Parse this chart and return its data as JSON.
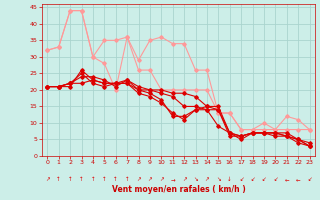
{
  "bg_color": "#cceee8",
  "grid_color": "#aad4ce",
  "xlabel": "Vent moyen/en rafales ( km/h )",
  "xlabel_color": "#cc0000",
  "xlim": [
    -0.5,
    23.5
  ],
  "ylim": [
    0,
    46
  ],
  "xticks": [
    0,
    1,
    2,
    3,
    4,
    5,
    6,
    7,
    8,
    9,
    10,
    11,
    12,
    13,
    14,
    15,
    16,
    17,
    18,
    19,
    20,
    21,
    22,
    23
  ],
  "yticks": [
    0,
    5,
    10,
    15,
    20,
    25,
    30,
    35,
    40,
    45
  ],
  "tick_color": "#cc0000",
  "lines_dark": [
    {
      "x": [
        0,
        1,
        2,
        3,
        4,
        5,
        6,
        7,
        8,
        9,
        10,
        11,
        12,
        13,
        14,
        15,
        16,
        17,
        18,
        19,
        20,
        21,
        22,
        23
      ],
      "y": [
        21,
        21,
        21,
        26,
        23,
        22,
        22,
        23,
        21,
        20,
        20,
        19,
        19,
        18,
        15,
        15,
        7,
        6,
        7,
        7,
        7,
        7,
        5,
        3
      ]
    },
    {
      "x": [
        0,
        1,
        2,
        3,
        4,
        5,
        6,
        7,
        8,
        9,
        10,
        11,
        12,
        13,
        14,
        15,
        16,
        17,
        18,
        19,
        20,
        21,
        22,
        23
      ],
      "y": [
        21,
        21,
        22,
        22,
        23,
        22,
        22,
        22,
        20,
        20,
        19,
        18,
        15,
        15,
        14,
        9,
        7,
        5,
        7,
        7,
        7,
        6,
        5,
        4
      ]
    },
    {
      "x": [
        0,
        1,
        2,
        3,
        4,
        5,
        6,
        7,
        8,
        9,
        10,
        11,
        12,
        13,
        14,
        15,
        16,
        17,
        18,
        19,
        20,
        21,
        22,
        23
      ],
      "y": [
        21,
        21,
        22,
        25,
        22,
        21,
        22,
        22,
        19,
        18,
        16,
        13,
        11,
        14,
        15,
        14,
        7,
        6,
        7,
        7,
        7,
        6,
        4,
        3
      ]
    },
    {
      "x": [
        0,
        1,
        2,
        3,
        4,
        5,
        6,
        7,
        8,
        9,
        10,
        11,
        12,
        13,
        14,
        15,
        16,
        17,
        18,
        19,
        20,
        21,
        22,
        23
      ],
      "y": [
        21,
        21,
        22,
        24,
        24,
        23,
        21,
        23,
        20,
        19,
        17,
        12,
        12,
        14,
        14,
        14,
        6,
        6,
        7,
        7,
        6,
        6,
        5,
        3
      ]
    }
  ],
  "lines_light": [
    {
      "x": [
        0,
        1,
        2,
        3,
        4,
        5,
        6,
        7,
        8,
        9,
        10,
        11,
        12,
        13,
        14,
        15,
        16,
        17,
        18,
        19,
        20,
        21,
        22,
        23
      ],
      "y": [
        32,
        33,
        44,
        44,
        30,
        35,
        35,
        36,
        29,
        35,
        36,
        34,
        34,
        26,
        26,
        13,
        13,
        8,
        8,
        10,
        8,
        12,
        11,
        8
      ]
    },
    {
      "x": [
        0,
        1,
        2,
        3,
        4,
        5,
        6,
        7,
        8,
        9,
        10,
        11,
        12,
        13,
        14,
        15,
        16,
        17,
        18,
        19,
        20,
        21,
        22,
        23
      ],
      "y": [
        32,
        33,
        44,
        44,
        30,
        28,
        20,
        36,
        26,
        26,
        20,
        20,
        20,
        20,
        20,
        13,
        13,
        8,
        8,
        8,
        8,
        8,
        8,
        8
      ]
    }
  ],
  "dark_color": "#dd0000",
  "light_color": "#ff9999",
  "marker": "D",
  "markersize": 1.8,
  "linewidth": 0.8,
  "wind_dirs": [
    "↗",
    "↑",
    "↑",
    "↑",
    "↑",
    "↑",
    "↑",
    "↑",
    "↗",
    "↗",
    "↗",
    "→",
    "↗",
    "↘",
    "↗",
    "↘",
    "↓",
    "↙",
    "↙",
    "↙",
    "↙",
    "←",
    "←",
    "↙"
  ]
}
